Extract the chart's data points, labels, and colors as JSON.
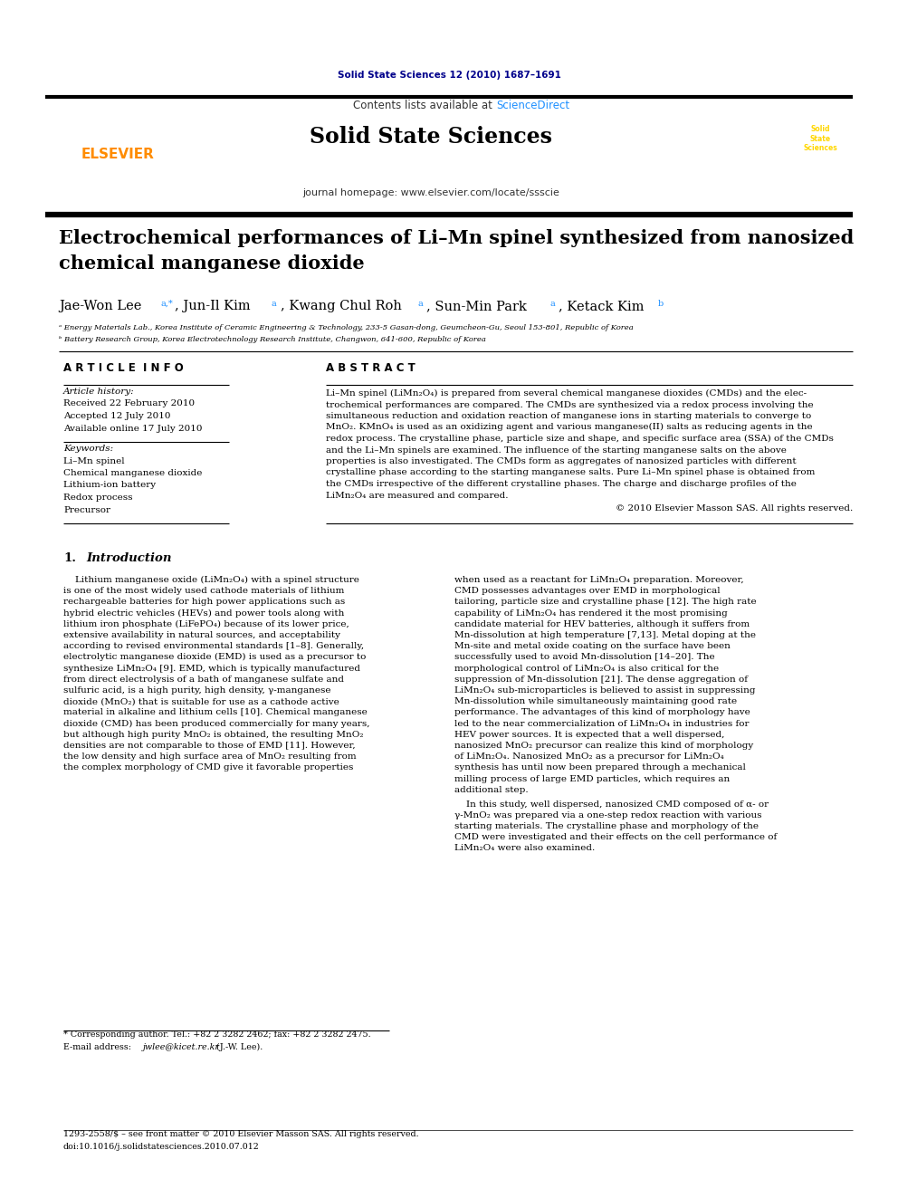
{
  "page_bg": "#ffffff",
  "journal_ref": "Solid State Sciences 12 (2010) 1687–1691",
  "journal_ref_color": "#00008B",
  "header_bg": "#E8E8E8",
  "header_title": "Solid State Sciences",
  "header_subtitle_plain": "Contents lists available at ",
  "header_subtitle_link": "ScienceDirect",
  "header_sciencedirect_color": "#1E90FF",
  "header_journal_url": "journal homepage: www.elsevier.com/locate/ssscie",
  "elsevier_color": "#FF8C00",
  "article_title_line1": "Electrochemical performances of Li–Mn spinel synthesized from nanosized",
  "article_title_line2": "chemical manganese dioxide",
  "affil_a": "ᵃ Energy Materials Lab., Korea Institute of Ceramic Engineering & Technology, 233-5 Gasan-dong, Geumcheon-Gu, Seoul 153-801, Republic of Korea",
  "affil_b": "ᵇ Battery Research Group, Korea Electrotechnology Research Institute, Changwon, 641-600, Republic of Korea",
  "article_info_title": "A R T I C L E  I N F O",
  "abstract_title": "A B S T R A C T",
  "article_history_label": "Article history:",
  "received": "Received 22 February 2010",
  "accepted": "Accepted 12 July 2010",
  "available": "Available online 17 July 2010",
  "keywords_label": "Keywords:",
  "keywords": [
    "Li–Mn spinel",
    "Chemical manganese dioxide",
    "Lithium-ion battery",
    "Redox process",
    "Precursor"
  ],
  "abstract_lines": [
    "Li–Mn spinel (LiMn₂O₄) is prepared from several chemical manganese dioxides (CMDs) and the elec-",
    "trochemical performances are compared. The CMDs are synthesized via a redox process involving the",
    "simultaneous reduction and oxidation reaction of manganese ions in starting materials to converge to",
    "MnO₂. KMnO₄ is used as an oxidizing agent and various manganese(II) salts as reducing agents in the",
    "redox process. The crystalline phase, particle size and shape, and specific surface area (SSA) of the CMDs",
    "and the Li–Mn spinels are examined. The influence of the starting manganese salts on the above",
    "properties is also investigated. The CMDs form as aggregates of nanosized particles with different",
    "crystalline phase according to the starting manganese salts. Pure Li–Mn spinel phase is obtained from",
    "the CMDs irrespective of the different crystalline phases. The charge and discharge profiles of the",
    "LiMn₂O₄ are measured and compared."
  ],
  "copyright": "© 2010 Elsevier Masson SAS. All rights reserved.",
  "intro_number": "1.",
  "intro_title": "Introduction",
  "col1_lines": [
    "    Lithium manganese oxide (LiMn₂O₄) with a spinel structure",
    "is one of the most widely used cathode materials of lithium",
    "rechargeable batteries for high power applications such as",
    "hybrid electric vehicles (HEVs) and power tools along with",
    "lithium iron phosphate (LiFePO₄) because of its lower price,",
    "extensive availability in natural sources, and acceptability",
    "according to revised environmental standards [1–8]. Generally,",
    "electrolytic manganese dioxide (EMD) is used as a precursor to",
    "synthesize LiMn₂O₄ [9]. EMD, which is typically manufactured",
    "from direct electrolysis of a bath of manganese sulfate and",
    "sulfuric acid, is a high purity, high density, γ-manganese",
    "dioxide (MnO₂) that is suitable for use as a cathode active",
    "material in alkaline and lithium cells [10]. Chemical manganese",
    "dioxide (CMD) has been produced commercially for many years,",
    "but although high purity MnO₂ is obtained, the resulting MnO₂",
    "densities are not comparable to those of EMD [11]. However,",
    "the low density and high surface area of MnO₂ resulting from",
    "the complex morphology of CMD give it favorable properties"
  ],
  "col2_lines": [
    "when used as a reactant for LiMn₂O₄ preparation. Moreover,",
    "CMD possesses advantages over EMD in morphological",
    "tailoring, particle size and crystalline phase [12]. The high rate",
    "capability of LiMn₂O₄ has rendered it the most promising",
    "candidate material for HEV batteries, although it suffers from",
    "Mn-dissolution at high temperature [7,13]. Metal doping at the",
    "Mn-site and metal oxide coating on the surface have been",
    "successfully used to avoid Mn-dissolution [14–20]. The",
    "morphological control of LiMn₂O₄ is also critical for the",
    "suppression of Mn-dissolution [21]. The dense aggregation of",
    "LiMn₂O₄ sub-microparticles is believed to assist in suppressing",
    "Mn-dissolution while simultaneously maintaining good rate",
    "performance. The advantages of this kind of morphology have",
    "led to the near commercialization of LiMn₂O₄ in industries for",
    "HEV power sources. It is expected that a well dispersed,",
    "nanosized MnO₂ precursor can realize this kind of morphology",
    "of LiMn₂O₄. Nanosized MnO₂ as a precursor for LiMn₂O₄",
    "synthesis has until now been prepared through a mechanical",
    "milling process of large EMD particles, which requires an",
    "additional step."
  ],
  "col2b_lines": [
    "    In this study, well dispersed, nanosized CMD composed of α- or",
    "γ-MnO₂ was prepared via a one-step redox reaction with various",
    "starting materials. The crystalline phase and morphology of the",
    "CMD were investigated and their effects on the cell performance of",
    "LiMn₂O₄ were also examined."
  ],
  "footnote1": "* Corresponding author. Tel.: +82 2 3282 2462; fax: +82 2 3282 2475.",
  "footnote2a": "E-mail address: ",
  "footnote2b": "jwlee@kicet.re.kr",
  "footnote2c": " (J.-W. Lee).",
  "footnote3": "1293-2558/$ – see front matter © 2010 Elsevier Masson SAS. All rights reserved.",
  "footnote4": "doi:10.1016/j.solidstatesciences.2010.07.012",
  "cover_text": "Solid\nState\nSciences"
}
